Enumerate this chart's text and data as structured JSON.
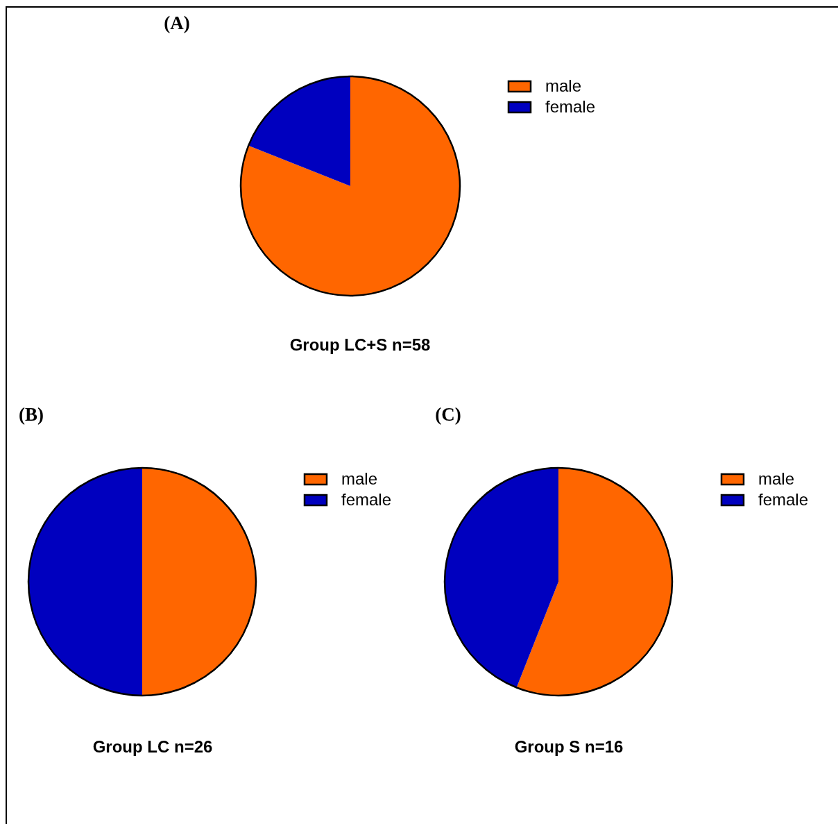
{
  "chart_data": [
    {
      "type": "pie",
      "title": "Group LC+S n=58",
      "annotations": [
        "(A)"
      ],
      "categories": [
        "male",
        "female"
      ],
      "values": [
        81,
        19
      ],
      "colors": [
        "#ff6600",
        "#0000bf"
      ],
      "legend": "top right"
    },
    {
      "type": "pie",
      "title": "Group LC n=26",
      "annotations": [
        "(B)"
      ],
      "categories": [
        "male",
        "female"
      ],
      "values": [
        50,
        50
      ],
      "colors": [
        "#ff6600",
        "#0000bf"
      ],
      "legend": "top right"
    },
    {
      "type": "pie",
      "title": "Group S n=16",
      "annotations": [
        "(C)"
      ],
      "categories": [
        "male",
        "female"
      ],
      "values": [
        56,
        44
      ],
      "colors": [
        "#ff6600",
        "#0000bf"
      ],
      "legend": "top right"
    }
  ]
}
